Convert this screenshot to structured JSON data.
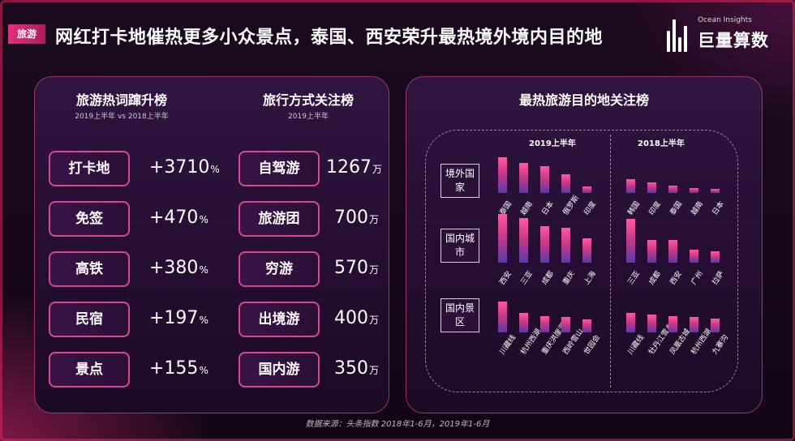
{
  "header": {
    "tag": "旅游",
    "title": "网红打卡地催热更多小众景点，泰国、西安荣升最热境外境内目的地",
    "logo_en": "Ocean Insights",
    "logo_cn": "巨量算数"
  },
  "left_panel": {
    "col1": {
      "title": "旅游热词蹿升榜",
      "subtitle": "2019上半年 vs 2018上半年",
      "items": [
        {
          "label": "打卡地",
          "value": "+3710",
          "unit": "%"
        },
        {
          "label": "免签",
          "value": "+470",
          "unit": "%"
        },
        {
          "label": "高铁",
          "value": "+380",
          "unit": "%"
        },
        {
          "label": "民宿",
          "value": "+197",
          "unit": "%"
        },
        {
          "label": "景点",
          "value": "+155",
          "unit": "%"
        }
      ]
    },
    "col2": {
      "title": "旅行方式关注榜",
      "subtitle": "2019上半年",
      "items": [
        {
          "label": "自驾游",
          "value": "1267",
          "unit": "万"
        },
        {
          "label": "旅游团",
          "value": "700",
          "unit": "万"
        },
        {
          "label": "穷游",
          "value": "570",
          "unit": "万"
        },
        {
          "label": "出境游",
          "value": "400",
          "unit": "万"
        },
        {
          "label": "国内游",
          "value": "350",
          "unit": "万"
        }
      ]
    }
  },
  "right_panel": {
    "title": "最热旅游目的地关注榜",
    "period_2019": "2019上半年",
    "period_2018": "2018上半年",
    "categories": [
      "境外国家",
      "国内城市",
      "国内景区"
    ]
  },
  "chart_data": {
    "type": "bar",
    "title": "最热旅游目的地关注榜",
    "groups": [
      {
        "category": "境外国家",
        "period": "2019上半年",
        "labels": [
          "泰国",
          "越南",
          "日本",
          "俄罗斯",
          "印度"
        ],
        "values": [
          0.95,
          0.8,
          0.72,
          0.5,
          0.18
        ]
      },
      {
        "category": "境外国家",
        "period": "2018上半年",
        "labels": [
          "韩国",
          "印度",
          "泰国",
          "越南",
          "日本"
        ],
        "values": [
          0.38,
          0.28,
          0.2,
          0.14,
          0.1
        ]
      },
      {
        "category": "国内城市",
        "period": "2019上半年",
        "labels": [
          "西安",
          "三亚",
          "成都",
          "重庆",
          "上海"
        ],
        "values": [
          1.0,
          0.92,
          0.75,
          0.72,
          0.5
        ]
      },
      {
        "category": "国内城市",
        "period": "2018上半年",
        "labels": [
          "三亚",
          "成都",
          "西安",
          "广州",
          "拉萨"
        ],
        "values": [
          0.9,
          0.46,
          0.46,
          0.26,
          0.24
        ]
      },
      {
        "category": "国内景区",
        "period": "2019上半年",
        "labels": [
          "川藏线",
          "杭州西湖",
          "重庆洪崖洞",
          "西岭雪山",
          "世园会"
        ],
        "values": [
          1.0,
          0.62,
          0.52,
          0.5,
          0.42
        ]
      },
      {
        "category": "国内景区",
        "period": "2018上半年",
        "labels": [
          "川藏线",
          "牡丹江雪乡",
          "凤凰古城",
          "杭州西湖",
          "九寨沟"
        ],
        "values": [
          0.62,
          0.58,
          0.52,
          0.5,
          0.45
        ]
      }
    ]
  },
  "footer": {
    "source": "数据来源：头条指数  2018年1-6月，2019年1-6月"
  }
}
